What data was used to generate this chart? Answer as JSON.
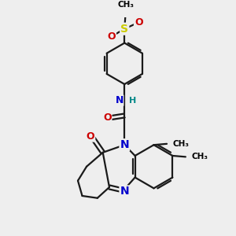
{
  "background_color": "#eeeeee",
  "atom_colors": {
    "C": "#000000",
    "N": "#0000cc",
    "O": "#cc0000",
    "S": "#cccc00",
    "H": "#008888"
  },
  "bond_color": "#1a1a1a",
  "bond_width": 1.6,
  "figsize": [
    3.0,
    3.0
  ],
  "dpi": 100,
  "xlim": [
    0,
    10
  ],
  "ylim": [
    0,
    10
  ]
}
